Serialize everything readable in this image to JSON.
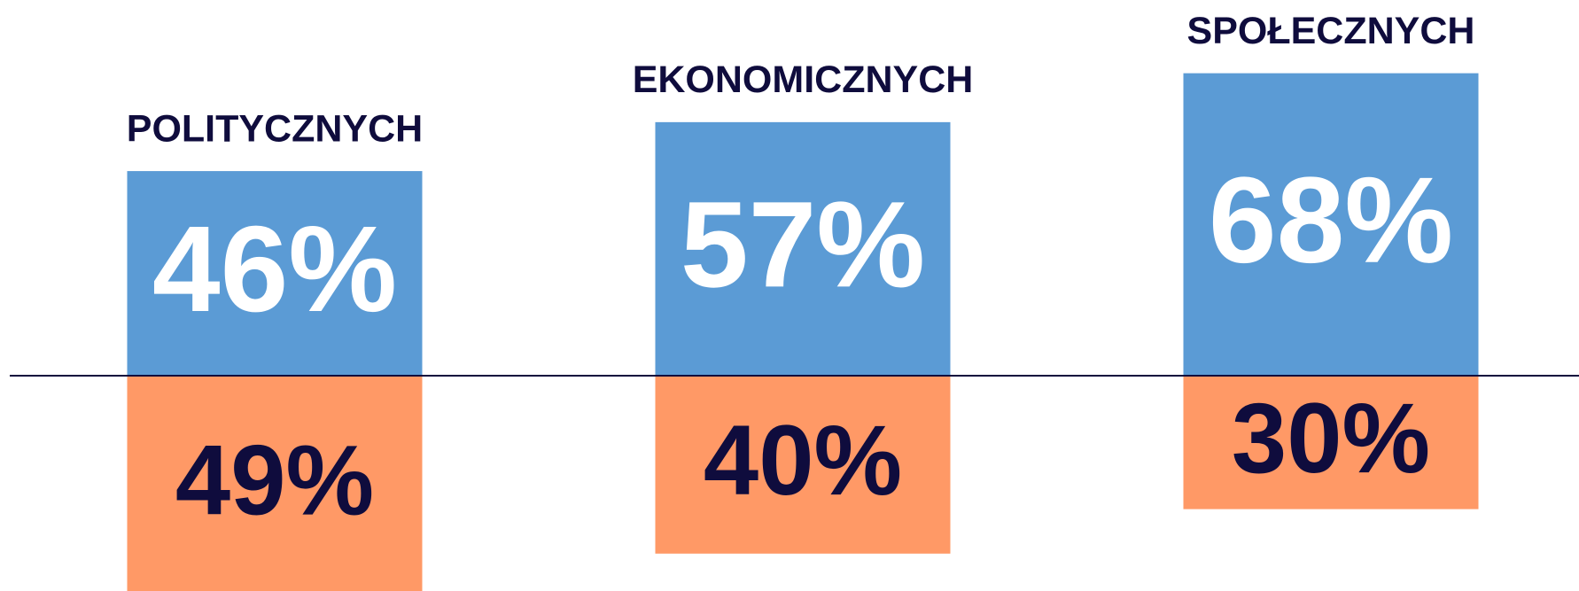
{
  "chart_data": {
    "type": "diverging_bar",
    "categories": [
      "POLITYCZNYCH",
      "EKONOMICZNYCH",
      "SPOŁECZNYCH"
    ],
    "category_color": "#0f0c3d",
    "series": [
      {
        "color": "#5b9bd5",
        "label_color": "#ffffff",
        "values": [
          46,
          57,
          68
        ],
        "value_labels": [
          "46%",
          "57%",
          "68%"
        ]
      },
      {
        "color": "#ff9966",
        "label_color": "#0f0c3d",
        "values": [
          49,
          40,
          30
        ],
        "value_labels": [
          "49%",
          "40%",
          "30%"
        ]
      }
    ],
    "baseline_color": "#0f0c3d"
  }
}
